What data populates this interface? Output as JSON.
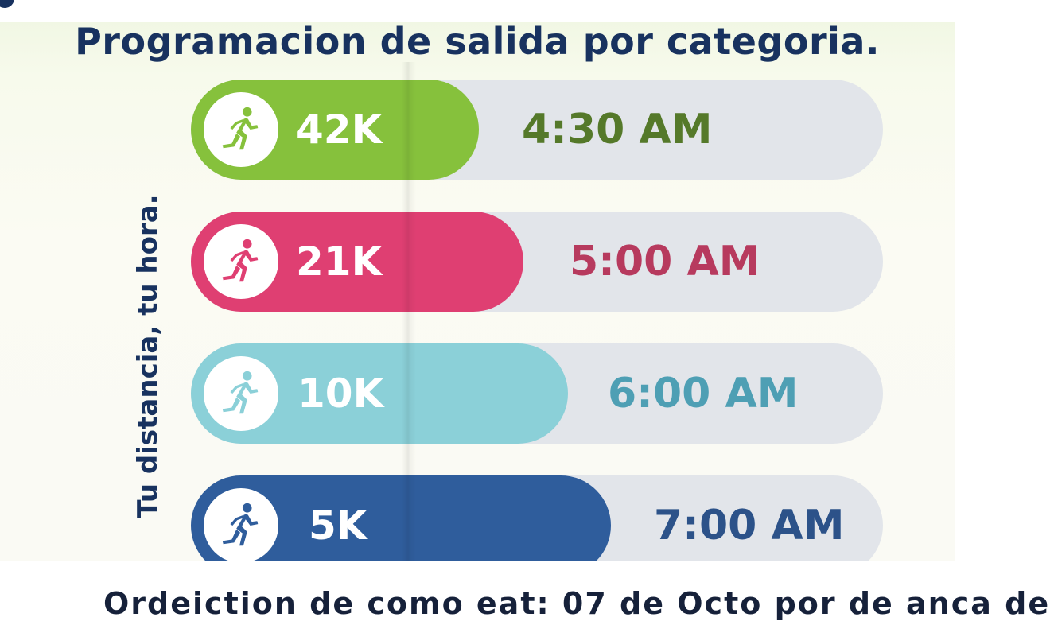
{
  "title": "Programacion de salida por categoria.",
  "side_caption": "Tu distancia, tu hora.",
  "rows": [
    {
      "distance": "42K",
      "time": "4:30 AM",
      "color": "#86c13c",
      "time_color": "#55792a",
      "icon": "runner-icon"
    },
    {
      "distance": "21K",
      "time": "5:00 AM",
      "color": "#df3f72",
      "time_color": "#b73a5e",
      "icon": "runner-icon"
    },
    {
      "distance": "10K",
      "time": "6:00 AM",
      "color": "#8bd0d8",
      "time_color": "#4e9fb4",
      "icon": "runner-icon"
    },
    {
      "distance": "5K",
      "time": "7:00 AM",
      "color": "#2f5d9c",
      "time_color": "#2c5289",
      "icon": "runner-icon"
    }
  ],
  "bottom_text": "Ordeiction de como eat: 07 de Octo por de anca de ",
  "colors": {
    "title": "#18325f",
    "track": "#e2e5ea"
  }
}
